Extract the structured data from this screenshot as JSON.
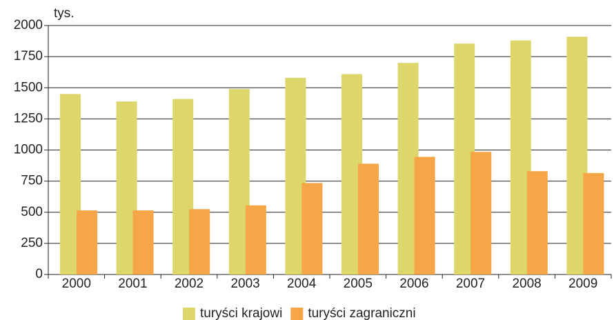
{
  "chart_data": {
    "type": "bar",
    "y_label": "tys.",
    "categories": [
      "2000",
      "2001",
      "2002",
      "2003",
      "2004",
      "2005",
      "2006",
      "2007",
      "2008",
      "2009"
    ],
    "series": [
      {
        "name": "turyści krajowi",
        "color": "#dcd66b",
        "values": [
          1450,
          1390,
          1410,
          1490,
          1580,
          1610,
          1700,
          1855,
          1880,
          1910
        ]
      },
      {
        "name": "turyści zagraniczni",
        "color": "#f7a647",
        "values": [
          515,
          515,
          525,
          555,
          735,
          890,
          945,
          985,
          830,
          815
        ]
      }
    ],
    "ylim": [
      0,
      2000
    ],
    "yticks": [
      0,
      250,
      500,
      750,
      1000,
      1250,
      1500,
      1750,
      2000
    ],
    "grid": true,
    "legend": "bottom"
  }
}
